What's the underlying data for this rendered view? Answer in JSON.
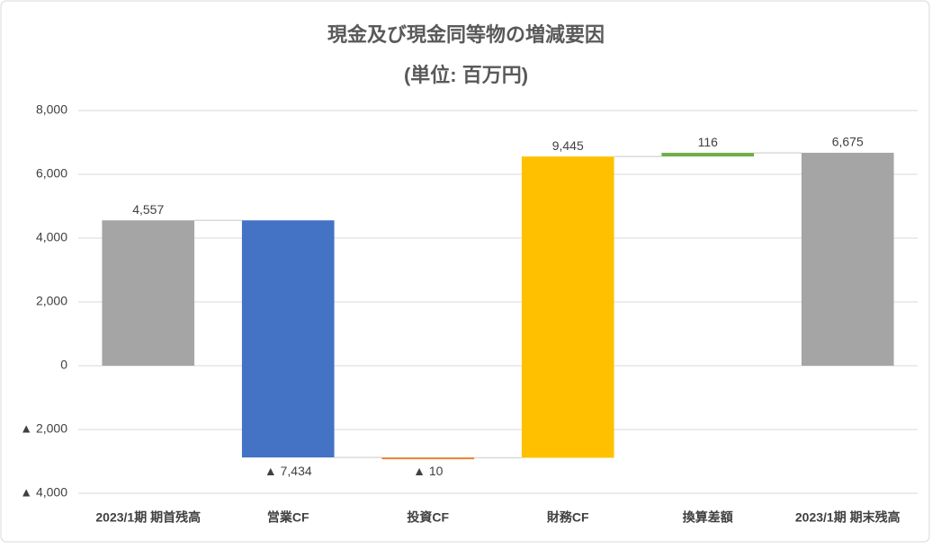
{
  "chart_data": {
    "type": "waterfall",
    "title": "現金及び現金同等物の増減要因",
    "subtitle": "(単位: 百万円)",
    "categories": [
      "2023/1期 期首残高",
      "営業CF",
      "投資CF",
      "財務CF",
      "換算差額",
      "2023/1期 期末残高"
    ],
    "values": [
      4557,
      -7434,
      -10,
      9445,
      116,
      6675
    ],
    "value_labels": [
      "4,557",
      "▲ 7,434",
      "▲ 10",
      "9,445",
      "116",
      "6,675"
    ],
    "totals": [
      true,
      false,
      false,
      false,
      false,
      true
    ],
    "colors": [
      "#a5a5a5",
      "#4472c4",
      "#ed7d31",
      "#ffc000",
      "#70ad47",
      "#a5a5a5"
    ],
    "ylim": [
      -4000,
      8000
    ],
    "yticks": [
      {
        "value": -4000,
        "label": "▲ 4,000"
      },
      {
        "value": -2000,
        "label": "▲ 2,000"
      },
      0,
      {
        "value": 2000,
        "label": "2,000"
      },
      {
        "value": 4000,
        "label": "4,000"
      },
      {
        "value": 6000,
        "label": "6,000"
      },
      {
        "value": 8000,
        "label": "8,000"
      }
    ],
    "grid": true
  }
}
